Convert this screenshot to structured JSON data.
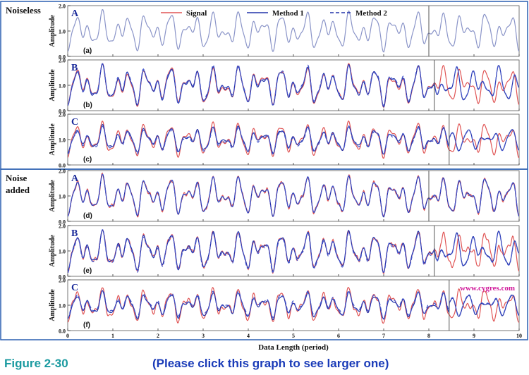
{
  "groups": [
    {
      "label_lines": [
        "Noiseless"
      ]
    },
    {
      "label_lines": [
        "Noise",
        "added"
      ]
    }
  ],
  "legend": {
    "items": [
      {
        "name": "Signal",
        "color": "#e05555",
        "dash": false
      },
      {
        "name": "Method 1",
        "color": "#2233aa",
        "dash": false
      },
      {
        "name": "Method 2",
        "color": "#2233aa",
        "dash": true
      }
    ]
  },
  "watermark": "www.cygres.com",
  "captions": {
    "figure": "Figure 2-30",
    "link": "(Please click this graph to see larger one)"
  },
  "colors": {
    "signal": "#e05555",
    "method1": "#2233aa",
    "method2": "#4455cc",
    "single": "#8a94c8",
    "panel_letter": "#1a2a9a",
    "watermark": "#d0189a"
  },
  "chart_data": {
    "type": "line",
    "xlabel": "Data Length (period)",
    "ylabel": "Amplitude",
    "xlim": [
      0,
      10
    ],
    "ylim": [
      0.0,
      2.0
    ],
    "xticks": [
      0,
      1,
      2,
      3,
      4,
      5,
      6,
      7,
      8,
      9,
      10
    ],
    "yticks": [
      "0.0",
      "1.0",
      "2.0"
    ],
    "signal_model": "1 + 0.35*sin(2*pi*(2x-0.28)) + 0.35*sin(2*pi*(3.3x-0.30)) - 0.15*sin(2*pi*(5.7x+0.34))",
    "panels": [
      {
        "letter": "A",
        "tag": "(a)",
        "group": 0,
        "divider_x": 8.0,
        "single_curve": true
      },
      {
        "letter": "B",
        "tag": "(b)",
        "group": 0,
        "divider_x": 8.12
      },
      {
        "letter": "C",
        "tag": "(c)",
        "group": 0,
        "divider_x": 8.45
      },
      {
        "letter": "A",
        "tag": "(d)",
        "group": 1,
        "divider_x": 8.0
      },
      {
        "letter": "B",
        "tag": "(e)",
        "group": 1,
        "divider_x": 8.12
      },
      {
        "letter": "C",
        "tag": "(f)",
        "group": 1,
        "divider_x": 8.45,
        "watermark": true
      }
    ]
  }
}
